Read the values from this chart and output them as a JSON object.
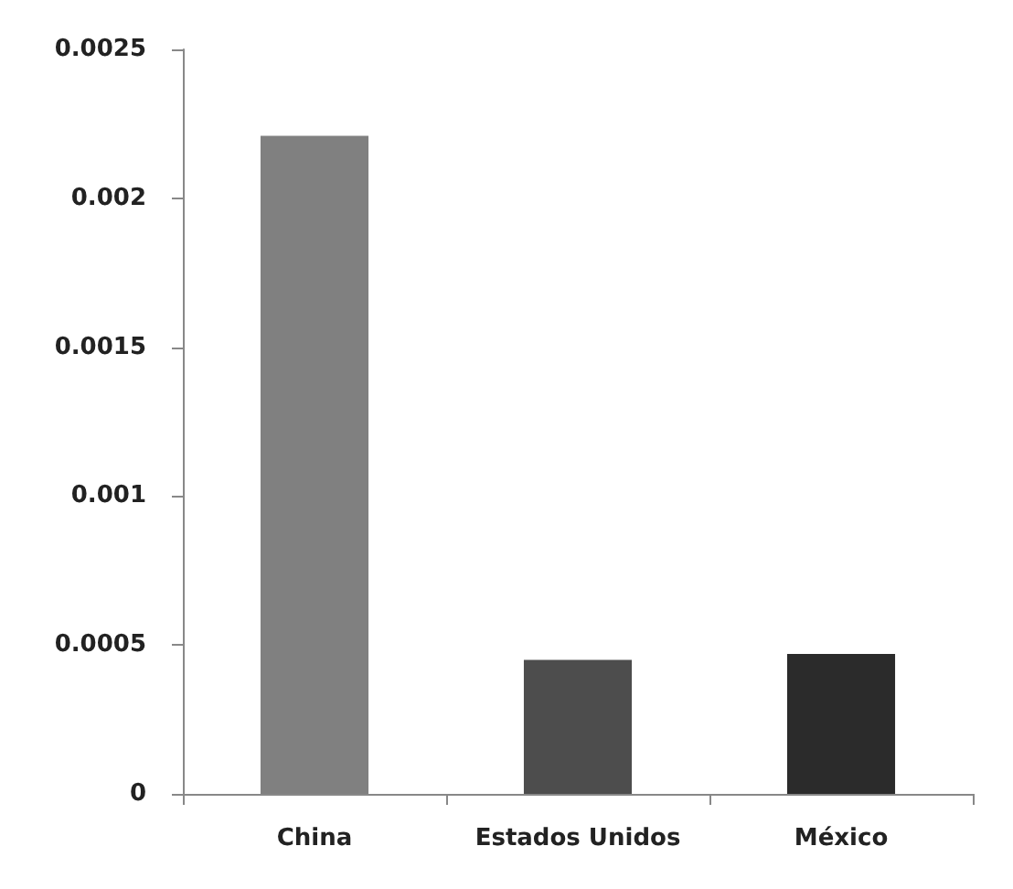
{
  "chart_data": {
    "type": "bar",
    "categories": [
      "China",
      "Estados Unidos",
      "México"
    ],
    "values": [
      0.00221,
      0.00045,
      0.00047
    ],
    "colors": [
      "#808080",
      "#4d4d4d",
      "#2b2b2b"
    ],
    "ylim": [
      0,
      0.0025
    ],
    "yticks": [
      0,
      0.0005,
      0.001,
      0.0015,
      0.002,
      0.0025
    ],
    "grid": false
  }
}
